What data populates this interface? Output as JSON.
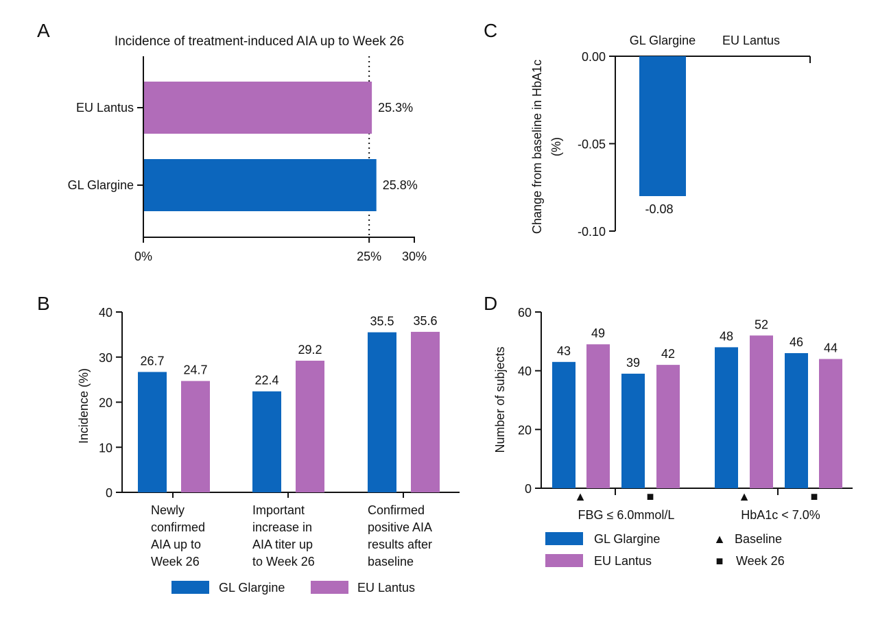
{
  "colors": {
    "gl": "#0c66bd",
    "eu": "#b16cb9"
  },
  "chart_data": [
    {
      "panel": "A",
      "type": "bar",
      "orientation": "horizontal",
      "title": "Incidence of treatment-induced AIA up to Week 26",
      "categories": [
        "EU Lantus",
        "GL Glargine"
      ],
      "values": [
        25.3,
        25.8
      ],
      "value_labels": [
        "25.3%",
        "25.8%"
      ],
      "xlim": [
        0,
        30
      ],
      "xticks": [
        0,
        25,
        30
      ],
      "xtick_labels": [
        "0%",
        "25%",
        "30%"
      ],
      "reference_line": 25
    },
    {
      "panel": "B",
      "type": "bar",
      "ylabel": "Incidence (%)",
      "ylim": [
        0,
        40
      ],
      "yticks": [
        "0",
        "10",
        "20",
        "30",
        "40"
      ],
      "categories": [
        [
          "Newly",
          "confirmed",
          "AIA up to",
          "Week 26"
        ],
        [
          "Important",
          "increase in",
          "AIA titer up",
          "to Week 26"
        ],
        [
          "Confirmed",
          "positive AIA",
          "results after",
          "baseline"
        ]
      ],
      "series": [
        {
          "name": "GL Glargine",
          "values": [
            26.7,
            22.4,
            35.5
          ],
          "labels": [
            "26.7",
            "22.4",
            "35.5"
          ]
        },
        {
          "name": "EU Lantus",
          "values": [
            24.7,
            29.2,
            35.6
          ],
          "labels": [
            "24.7",
            "29.2",
            "35.6"
          ]
        }
      ],
      "legend": [
        "GL Glargine",
        "EU Lantus"
      ]
    },
    {
      "panel": "C",
      "type": "bar",
      "ylabel": "Change from baseline in HbA1c (%)",
      "ylabel_lines": [
        "Change from baseline in HbA1c",
        "(%)"
      ],
      "ylim": [
        -0.1,
        0.0
      ],
      "yticks": [
        "0.00",
        "-0.05",
        "-0.10"
      ],
      "categories": [
        "GL Glargine",
        "EU Lantus"
      ],
      "values": [
        -0.08,
        null
      ],
      "value_labels": [
        "-0.08",
        ""
      ]
    },
    {
      "panel": "D",
      "type": "bar",
      "ylabel": "Number of subjects",
      "ylim": [
        0,
        60
      ],
      "yticks": [
        "0",
        "20",
        "40",
        "60"
      ],
      "groups": [
        "FBG ≤ 6.0mmol/L",
        "HbA1c < 7.0%"
      ],
      "bars": [
        {
          "series": "GL Glargine",
          "time": "Baseline",
          "value": 43,
          "label": "43"
        },
        {
          "series": "EU Lantus",
          "time": "Baseline",
          "value": 49,
          "label": "49"
        },
        {
          "series": "GL Glargine",
          "time": "Week 26",
          "value": 39,
          "label": "39"
        },
        {
          "series": "EU Lantus",
          "time": "Week 26",
          "value": 42,
          "label": "42"
        },
        {
          "series": "GL Glargine",
          "time": "Baseline",
          "value": 48,
          "label": "48"
        },
        {
          "series": "EU Lantus",
          "time": "Baseline",
          "value": 52,
          "label": "52"
        },
        {
          "series": "GL Glargine",
          "time": "Week 26",
          "value": 46,
          "label": "46"
        },
        {
          "series": "EU Lantus",
          "time": "Week 26",
          "value": 44,
          "label": "44"
        }
      ],
      "time_markers": [
        "▲",
        "■",
        "▲",
        "■"
      ],
      "legend": {
        "series": [
          "GL Glargine",
          "EU Lantus"
        ],
        "markers": [
          {
            "symbol": "▲",
            "label": "Baseline"
          },
          {
            "symbol": "■",
            "label": "Week 26"
          }
        ]
      }
    }
  ],
  "panels": {
    "a": "A",
    "b": "B",
    "c": "C",
    "d": "D"
  }
}
